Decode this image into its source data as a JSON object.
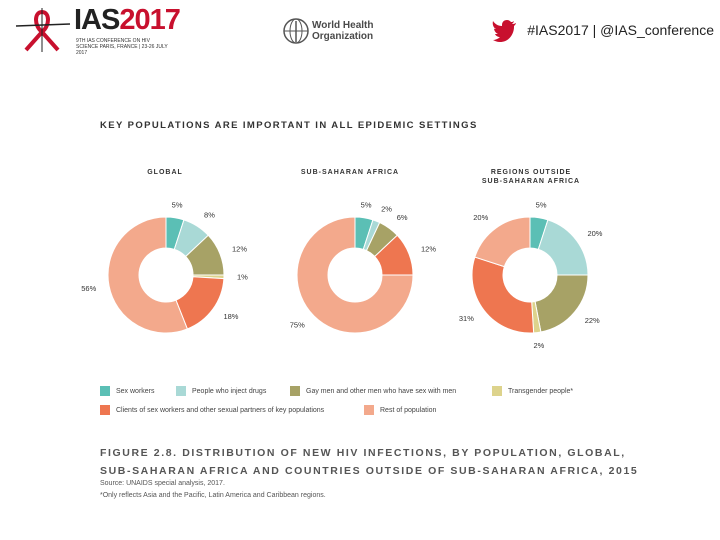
{
  "header": {
    "conference_name": "IAS",
    "conference_year": "2017",
    "conference_subtitle": "9TH IAS CONFERENCE ON HIV SCIENCE PARIS, FRANCE | 23-26 JULY 2017",
    "partner_line1": "World Health",
    "partner_line2": "Organization",
    "social_text": "#IAS2017 | @IAS_conference"
  },
  "chart_data": {
    "type": "pie",
    "title": "KEY POPULATIONS ARE IMPORTANT IN ALL EPIDEMIC SETTINGS",
    "categories": [
      "Sex workers",
      "People who inject drugs",
      "Gay men and other men who have sex with men",
      "Transgender people*",
      "Clients of sex workers and other sexual partners of key populations",
      "Rest of population"
    ],
    "colors": [
      "#5bbfb5",
      "#a9d9d6",
      "#a7a266",
      "#ddd38c",
      "#ee7650",
      "#f3a98c"
    ],
    "panels": [
      {
        "title_line1": "GLOBAL",
        "title_line2": "",
        "values": [
          5,
          8,
          12,
          1,
          18,
          56
        ],
        "labels": [
          "5%",
          "8%",
          "12%",
          "1%",
          "18%",
          "56%"
        ]
      },
      {
        "title_line1": "SUB-SAHARAN AFRICA",
        "title_line2": "",
        "values": [
          5,
          2,
          6,
          0,
          12,
          75
        ],
        "labels": [
          "5%",
          "2%",
          "6%",
          "",
          "12%",
          "75%"
        ]
      },
      {
        "title_line1": "REGIONS OUTSIDE",
        "title_line2": "SUB-SAHARAN AFRICA",
        "values": [
          5,
          20,
          22,
          2,
          31,
          20
        ],
        "labels": [
          "5%",
          "20%",
          "22%",
          "2%",
          "31%",
          "20%"
        ]
      }
    ]
  },
  "caption": {
    "line1": "FIGURE 2.8. DISTRIBUTION OF NEW HIV INFECTIONS, BY POPULATION, GLOBAL,",
    "line2": "SUB-SAHARAN AFRICA AND COUNTRIES OUTSIDE OF SUB-SAHARAN AFRICA, 2015",
    "source": "Source: UNAIDS special analysis, 2017.",
    "footnote": "*Only reflects Asia and the Pacific, Latin America and Caribbean regions."
  }
}
